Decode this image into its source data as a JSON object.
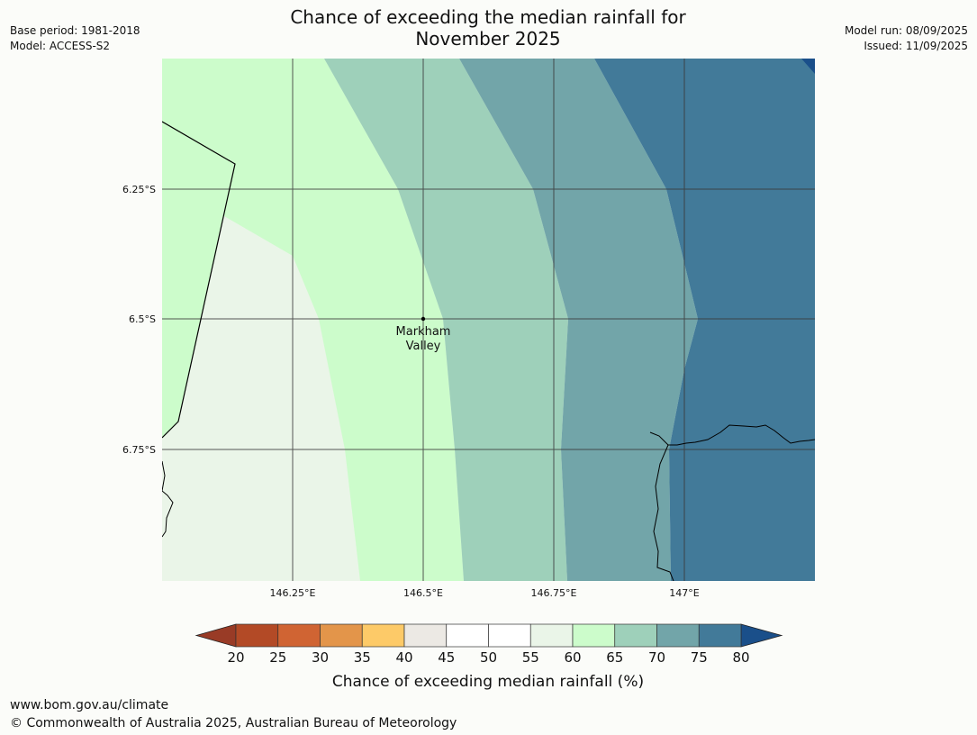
{
  "header": {
    "title_line1": "Chance of exceeding the median rainfall for",
    "title_line2": "November 2025",
    "base_period": "Base period: 1981-2018",
    "model": "Model: ACCESS-S2",
    "model_run": "Model run: 08/09/2025",
    "issued": "Issued: 11/09/2025"
  },
  "map": {
    "lon_ticks": [
      "146.25°E",
      "146.5°E",
      "146.75°E",
      "147°E"
    ],
    "lat_ticks": [
      "6.25°S",
      "6.5°S",
      "6.75°S"
    ],
    "place": {
      "name_line1": "Markham",
      "name_line2": "Valley"
    }
  },
  "colorbar": {
    "label": "Chance of exceeding median rainfall (%)",
    "ticks": [
      "20",
      "25",
      "30",
      "35",
      "40",
      "45",
      "50",
      "55",
      "60",
      "65",
      "70",
      "75",
      "80"
    ],
    "under_color": "#993b26",
    "over_color": "#1a4f8a",
    "colors": [
      "#b34a26",
      "#d06433",
      "#e3954a",
      "#fdca68",
      "#ece9e4",
      "#ffffff",
      "#ffffff",
      "#eaf5e8",
      "#ccfccb",
      "#9ed0ba",
      "#72a5a9",
      "#427a99"
    ]
  },
  "footer": {
    "url": "www.bom.gov.au/climate",
    "copyright": "© Commonwealth of Australia 2025, Australian Bureau of Meteorology"
  }
}
